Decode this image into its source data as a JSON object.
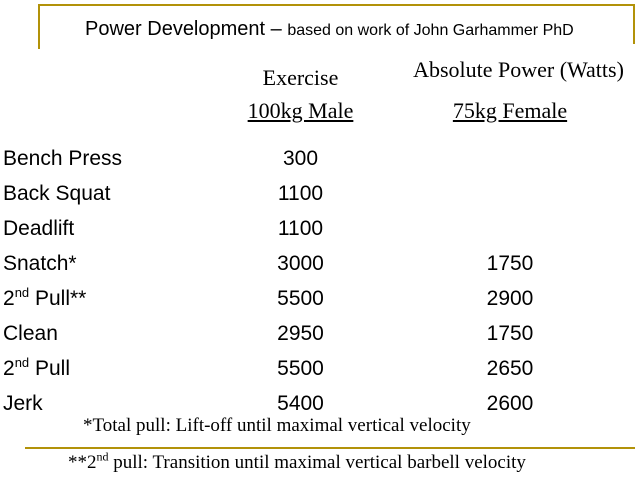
{
  "colors": {
    "accent_gold": "#b29209",
    "text": "#000000",
    "background": "#ffffff"
  },
  "title": {
    "main": "Power Development –",
    "sub": "based on work of John Garhammer PhD"
  },
  "table": {
    "headers": {
      "exercise": "Exercise",
      "power": "Absolute Power (Watts)",
      "male": "100kg Male",
      "female": "75kg Female"
    },
    "rows": [
      {
        "pre": "Bench Press",
        "sup": "",
        "post": "",
        "male": "300",
        "female": ""
      },
      {
        "pre": "Back Squat",
        "sup": "",
        "post": "",
        "male": "1100",
        "female": ""
      },
      {
        "pre": "Deadlift",
        "sup": "",
        "post": "",
        "male": "1100",
        "female": ""
      },
      {
        "pre": "Snatch*",
        "sup": "",
        "post": "",
        "male": "3000",
        "female": "1750"
      },
      {
        "pre": "2",
        "sup": "nd",
        "post": " Pull**",
        "male": "5500",
        "female": "2900"
      },
      {
        "pre": "Clean",
        "sup": "",
        "post": "",
        "male": "2950",
        "female": "1750"
      },
      {
        "pre": "2",
        "sup": "nd",
        "post": " Pull",
        "male": "5500",
        "female": "2650"
      },
      {
        "pre": "Jerk",
        "sup": "",
        "post": "",
        "male": "5400",
        "female": "2600"
      }
    ]
  },
  "footnotes": {
    "first": "*Total pull: Lift-off until maximal vertical velocity",
    "second_pre": "**2",
    "second_sup": "nd",
    "second_post": " pull: Transition until maximal vertical barbell velocity"
  }
}
